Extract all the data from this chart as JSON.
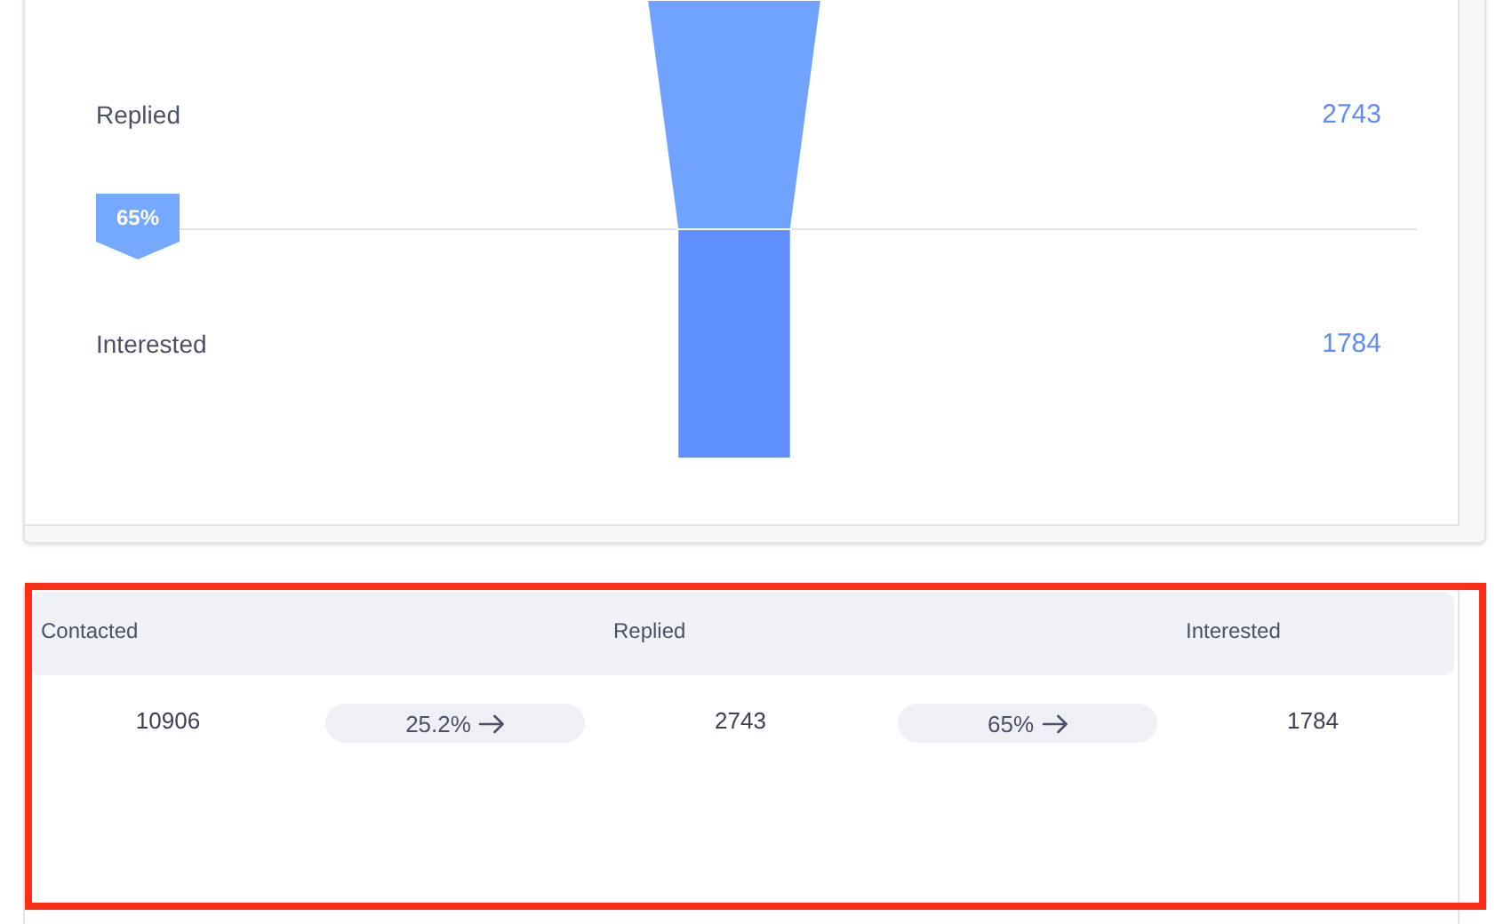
{
  "chart_data": [
    {
      "type": "other",
      "categories": [
        "Replied",
        "Interested"
      ],
      "values": [
        2743,
        1784
      ],
      "colors": [
        "#6fa3ff",
        "#5f8fff"
      ],
      "annotations": [
        "65%"
      ],
      "data_labels": true
    },
    {
      "type": "other",
      "categories": [
        "Contacted",
        "Replied",
        "Interested"
      ],
      "values": [
        10906,
        2743,
        1784
      ],
      "annotations": [
        "25.2%",
        "65%"
      ],
      "data_labels": true
    }
  ]
}
